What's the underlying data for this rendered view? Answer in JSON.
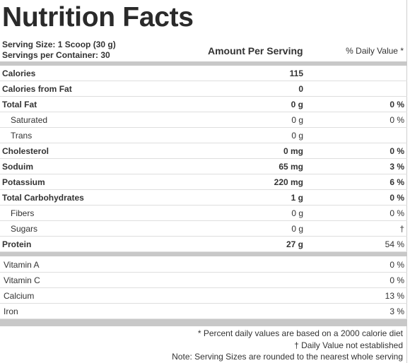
{
  "title": "Nutrition Facts",
  "serving_size": "Serving Size: 1 Scoop (30 g)",
  "servings_per_container": "Servings per Container: 30",
  "amount_header": "Amount Per Serving",
  "dv_header": "% Daily Value *",
  "nutrients": [
    {
      "label": "Calories",
      "amount": "115",
      "dv": "",
      "bold": true,
      "sub": false
    },
    {
      "label": "Calories from Fat",
      "amount": "0",
      "dv": "",
      "bold": true,
      "sub": false
    },
    {
      "label": "Total Fat",
      "amount": "0 g",
      "dv": "0 %",
      "bold": true,
      "sub": false
    },
    {
      "label": "Saturated",
      "amount": "0 g",
      "dv": "0 %",
      "bold": false,
      "sub": true
    },
    {
      "label": "Trans",
      "amount": "0 g",
      "dv": "",
      "bold": false,
      "sub": true
    },
    {
      "label": "Cholesterol",
      "amount": "0 mg",
      "dv": "0 %",
      "bold": true,
      "sub": false
    },
    {
      "label": "Soduim",
      "amount": "65 mg",
      "dv": "3 %",
      "bold": true,
      "sub": false
    },
    {
      "label": "Potassium",
      "amount": "220 mg",
      "dv": "6 %",
      "bold": true,
      "sub": false
    },
    {
      "label": "Total Carbohydrates",
      "amount": "1 g",
      "dv": "0 %",
      "bold": true,
      "sub": false
    },
    {
      "label": "Fibers",
      "amount": "0 g",
      "dv": "0 %",
      "bold": false,
      "sub": true
    },
    {
      "label": "Sugars",
      "amount": "0 g",
      "dv": "†",
      "bold": false,
      "sub": true
    },
    {
      "label": "Protein",
      "amount": "27 g",
      "dv": "54 %",
      "bold": true,
      "sub": false
    }
  ],
  "vitamins": [
    {
      "label": "Vitamin A",
      "dv": "0 %"
    },
    {
      "label": "Vitamin C",
      "dv": "0 %"
    },
    {
      "label": "Calcium",
      "dv": "13 %"
    },
    {
      "label": "Iron",
      "dv": "3 %"
    }
  ],
  "footnotes": [
    "* Percent daily values are based on a 2000 calorie diet",
    "† Daily Value not established",
    "Note: Serving Sizes are rounded to the nearest whole serving"
  ]
}
